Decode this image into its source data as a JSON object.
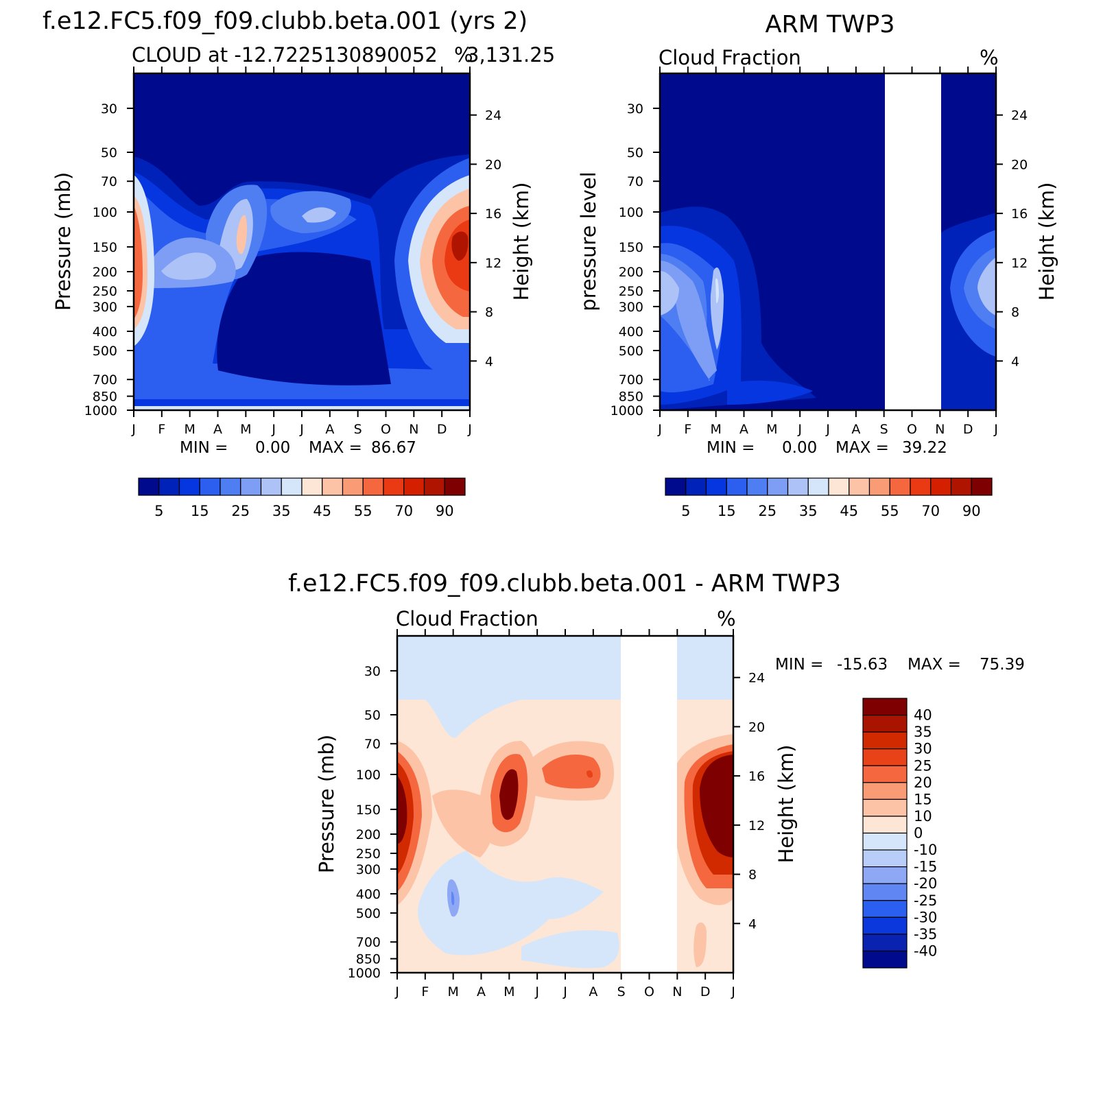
{
  "palette": {
    "seq": [
      "#000a8c",
      "#0022b8",
      "#0536e0",
      "#2c5ff0",
      "#4f7ef2",
      "#7d9ef4",
      "#adc3f7",
      "#d6e6fa",
      "#fde6d6",
      "#fcc3a6",
      "#f99c76",
      "#f5683f",
      "#ea3a14",
      "#d42000",
      "#ae1400",
      "#7e0000"
    ],
    "diff": [
      "#000a8c",
      "#0a22b0",
      "#0a38dc",
      "#2a5ff0",
      "#5f86f3",
      "#8ea8f5",
      "#b8cdf8",
      "#d6e6fa",
      "#fde6d6",
      "#fcc3a6",
      "#f99c76",
      "#f5683f",
      "#e84218",
      "#d22a00",
      "#a81400",
      "#7e0000"
    ]
  },
  "chart_data": [
    {
      "id": "model",
      "type": "heatmap",
      "title": "f.e12.FC5.f09_f09.clubb.beta.001 (yrs 2)",
      "subtitle_left": "CLOUD at -12.7225130890052",
      "subtitle_right": "%",
      "subtitle_right_text": "3,131.25",
      "ylabel_left": "Pressure (mb)",
      "ylabel_right": "Height (km)",
      "x_ticks": [
        "J",
        "F",
        "M",
        "A",
        "M",
        "J",
        "J",
        "A",
        "S",
        "O",
        "N",
        "D",
        "J"
      ],
      "y_ticks_pressure": [
        30,
        50,
        70,
        100,
        150,
        200,
        250,
        300,
        400,
        500,
        700,
        850,
        1000
      ],
      "y_ticks_height": [
        24,
        20,
        16,
        12,
        8,
        4
      ],
      "min_label": "MIN =",
      "min_value": "0.00",
      "max_label": "MAX =",
      "max_value": "86.67",
      "colorbar_levels": [
        5,
        10,
        15,
        20,
        25,
        30,
        35,
        40,
        45,
        50,
        55,
        60,
        70,
        80,
        90
      ],
      "colorbar_labels": [
        "5",
        "15",
        "25",
        "35",
        "45",
        "55",
        "70",
        "90"
      ],
      "missing_months": []
    },
    {
      "id": "obs",
      "type": "heatmap",
      "title": "ARM TWP3",
      "subtitle_left": "Cloud Fraction",
      "subtitle_right": "%",
      "ylabel_left": "pressure level",
      "ylabel_right": "Height (km)",
      "x_ticks": [
        "J",
        "F",
        "M",
        "A",
        "M",
        "J",
        "J",
        "A",
        "S",
        "O",
        "N",
        "D",
        "J"
      ],
      "y_ticks_pressure": [
        30,
        50,
        70,
        100,
        150,
        200,
        250,
        300,
        400,
        500,
        700,
        850,
        1000
      ],
      "y_ticks_height": [
        24,
        20,
        16,
        12,
        8,
        4
      ],
      "min_label": "MIN =",
      "min_value": "0.00",
      "max_label": "MAX =",
      "max_value": "39.22",
      "colorbar_levels": [
        5,
        10,
        15,
        20,
        25,
        30,
        35,
        40,
        45,
        50,
        55,
        60,
        70,
        80,
        90
      ],
      "colorbar_labels": [
        "5",
        "15",
        "25",
        "35",
        "45",
        "55",
        "70",
        "90"
      ],
      "missing_months": [
        "Sep",
        "Oct"
      ]
    },
    {
      "id": "diff",
      "type": "heatmap",
      "title": "f.e12.FC5.f09_f09.clubb.beta.001 - ARM TWP3",
      "subtitle_left": "Cloud Fraction",
      "subtitle_right": "%",
      "ylabel_left": "Pressure (mb)",
      "ylabel_right": "Height (km)",
      "x_ticks": [
        "J",
        "F",
        "M",
        "A",
        "M",
        "J",
        "J",
        "A",
        "S",
        "O",
        "N",
        "D",
        "J"
      ],
      "y_ticks_pressure": [
        30,
        50,
        70,
        100,
        150,
        200,
        250,
        300,
        400,
        500,
        700,
        850,
        1000
      ],
      "y_ticks_height": [
        24,
        20,
        16,
        12,
        8,
        4
      ],
      "min_label": "MIN =",
      "min_value": "-15.63",
      "max_label": "MAX =",
      "max_value": "75.39",
      "colorbar_levels": [
        -40,
        -35,
        -30,
        -25,
        -20,
        -15,
        -10,
        0,
        10,
        15,
        20,
        25,
        30,
        35,
        40
      ],
      "colorbar_labels": [
        "40",
        "35",
        "30",
        "25",
        "20",
        "15",
        "10",
        "0",
        "-10",
        "-15",
        "-20",
        "-25",
        "-30",
        "-35",
        "-40"
      ],
      "missing_months": [
        "Sep",
        "Oct"
      ]
    }
  ]
}
